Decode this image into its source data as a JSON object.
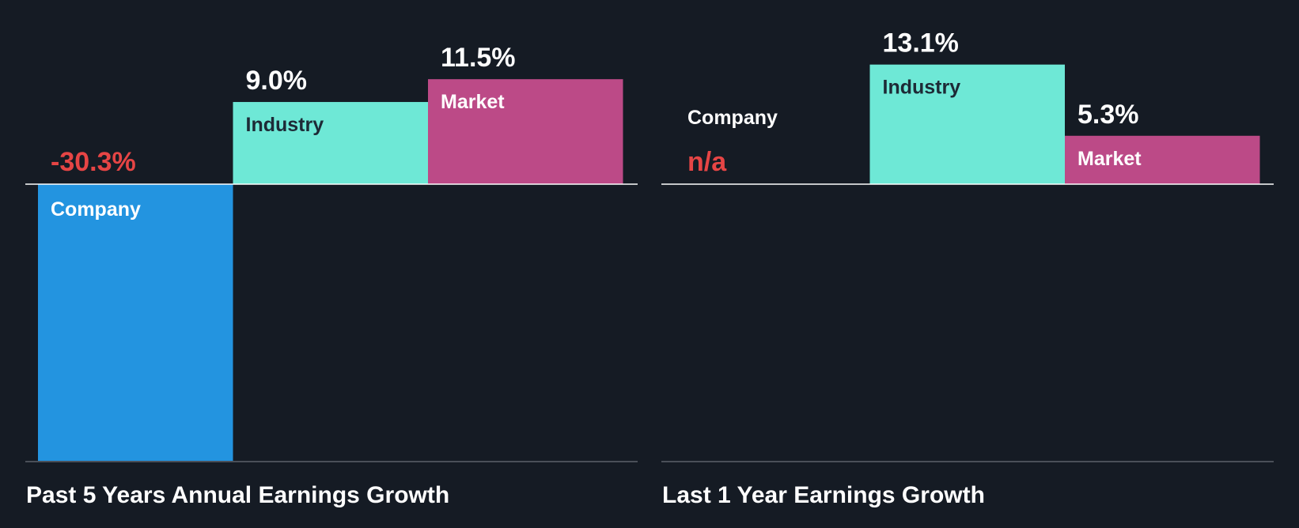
{
  "colors": {
    "background": "#151b24",
    "company": "#2394e0",
    "industry": "#6ee8d6",
    "market": "#bc4a87",
    "negative_text": "#e64545",
    "value_text": "#ffffff",
    "label_dark": "#1d2a36",
    "label_light": "#ffffff",
    "baseline": "#ffffff",
    "bottom_rule": "#4a4f58"
  },
  "chart_data": [
    {
      "type": "bar",
      "title": "Past 5 Years Annual Earnings Growth",
      "categories": [
        "Company",
        "Industry",
        "Market"
      ],
      "values": [
        -30.3,
        9.0,
        11.5
      ],
      "value_labels": [
        "-30.3%",
        "9.0%",
        "11.5%"
      ],
      "unit": "%",
      "ylim": [
        -30.3,
        11.5
      ],
      "grid": false,
      "legend": "none"
    },
    {
      "type": "bar",
      "title": "Last 1 Year Earnings Growth",
      "categories": [
        "Company",
        "Industry",
        "Market"
      ],
      "values": [
        null,
        13.1,
        5.3
      ],
      "value_labels": [
        "n/a",
        "13.1%",
        "5.3%"
      ],
      "unit": "%",
      "ylim": [
        -30.3,
        13.1
      ],
      "grid": false,
      "legend": "none"
    }
  ]
}
